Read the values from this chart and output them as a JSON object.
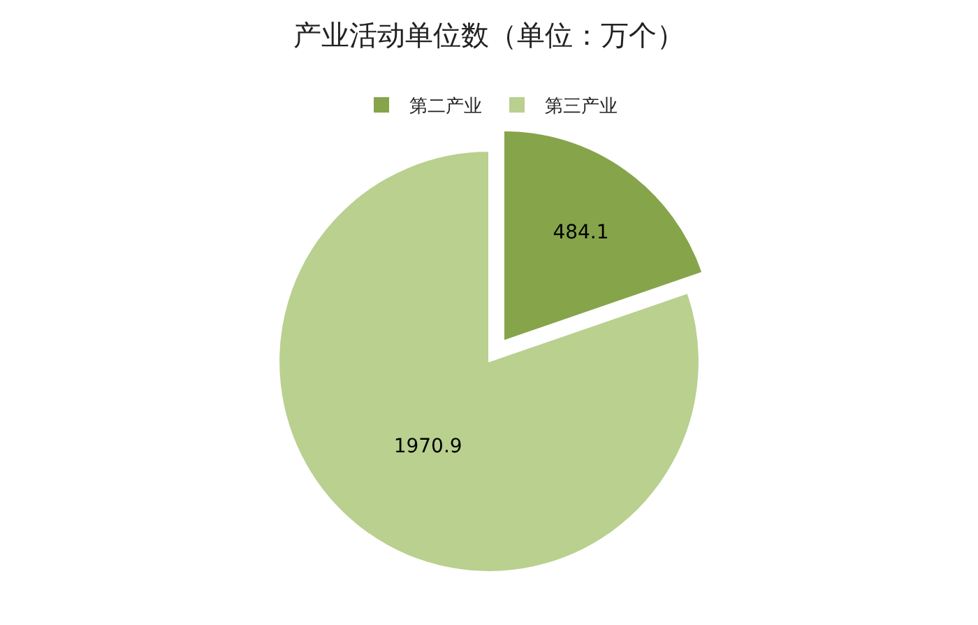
{
  "chart_data": {
    "type": "pie",
    "title": "产业活动单位数（单位：万个）",
    "categories": [
      "第二产业",
      "第三产业"
    ],
    "values": [
      484.1,
      1970.9
    ],
    "colors": [
      "#86a44a",
      "#b9d08f"
    ],
    "data_labels": true,
    "legend": "top"
  }
}
